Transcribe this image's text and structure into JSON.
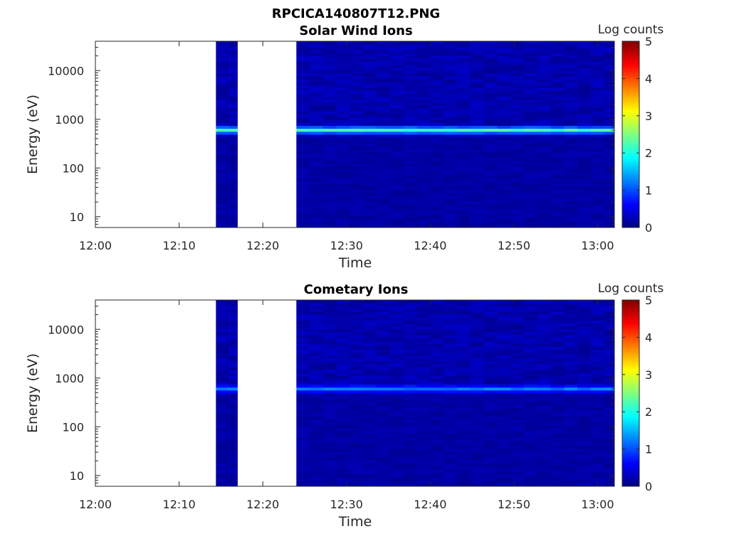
{
  "figure": {
    "title": "RPCICA140807T12.PNG"
  },
  "chart_data": [
    {
      "type": "heatmap",
      "title": "Solar Wind Ions",
      "xlabel": "Time",
      "ylabel": "Energy (eV)",
      "y_scale": "log",
      "ylim": [
        6,
        40000
      ],
      "xlim": [
        "12:00",
        "13:02"
      ],
      "x_ticks": [
        "12:00",
        "12:10",
        "12:20",
        "12:30",
        "12:40",
        "12:50",
        "13:00"
      ],
      "y_ticks": [
        "10",
        "100",
        "1000",
        "10000"
      ],
      "colorbar": {
        "label": "Log counts",
        "range": [
          0,
          5
        ],
        "ticks": [
          "0",
          "1",
          "2",
          "3",
          "4",
          "5"
        ],
        "colormap": "jet"
      },
      "data_gaps": [
        [
          "12:00",
          "12:14"
        ],
        [
          "12:17",
          "12:24"
        ]
      ],
      "peak_band": {
        "energy_center_eV": 600,
        "log_counts": 2.0
      },
      "background_log_counts": 0.1
    },
    {
      "type": "heatmap",
      "title": "Cometary Ions",
      "xlabel": "Time",
      "ylabel": "Energy (eV)",
      "y_scale": "log",
      "ylim": [
        6,
        40000
      ],
      "xlim": [
        "12:00",
        "13:02"
      ],
      "x_ticks": [
        "12:00",
        "12:10",
        "12:20",
        "12:30",
        "12:40",
        "12:50",
        "13:00"
      ],
      "y_ticks": [
        "10",
        "100",
        "1000",
        "10000"
      ],
      "colorbar": {
        "label": "Log counts",
        "range": [
          0,
          5
        ],
        "ticks": [
          "0",
          "1",
          "2",
          "3",
          "4",
          "5"
        ],
        "colormap": "jet"
      },
      "data_gaps": [
        [
          "12:00",
          "12:14"
        ],
        [
          "12:17",
          "12:24"
        ]
      ],
      "peak_band": {
        "energy_center_eV": 600,
        "log_counts": 1.0
      },
      "background_log_counts": 0.1
    }
  ]
}
